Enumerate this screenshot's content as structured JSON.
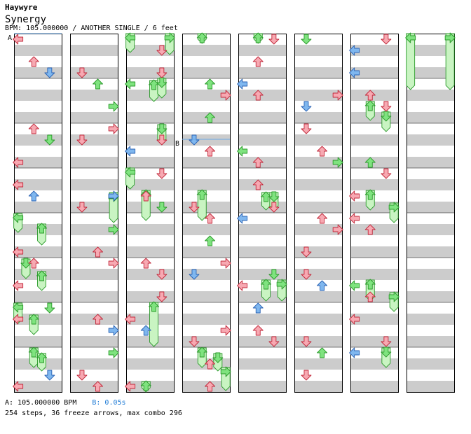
{
  "header": {
    "artist": "Haywyre",
    "title": "Synergy",
    "info": "BPM: 105.000000 / ANOTHER SINGLE / 6 feet"
  },
  "markers": {
    "a_label": "A",
    "b_label": "B"
  },
  "footer": {
    "bpm_text": "A: 105.000000 BPM",
    "stop_text": "B: 0.05s",
    "stats": "254 steps, 36 freeze arrows, max combo 296"
  },
  "colors": {
    "red_arrow": "#f7a9b2",
    "blue_arrow": "#7fb7ef",
    "green_arrow": "#7fe37f",
    "freeze_body": "#c9f4c2",
    "stripe": "#cccccc"
  }
}
